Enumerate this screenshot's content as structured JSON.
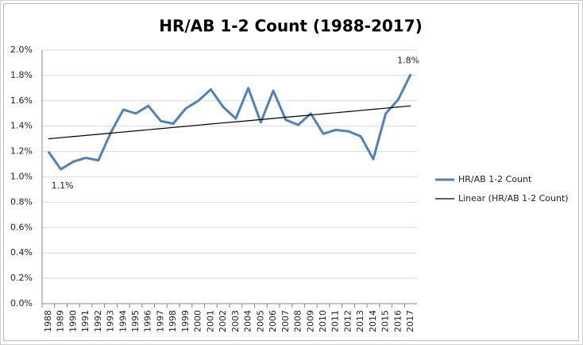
{
  "chart_data": {
    "type": "line",
    "title": "HR/AB 1-2 Count (1988-2017)",
    "categories": [
      "1988",
      "1989",
      "1990",
      "1991",
      "1992",
      "1993",
      "1994",
      "1995",
      "1996",
      "1997",
      "1998",
      "1999",
      "2000",
      "2001",
      "2002",
      "2003",
      "2004",
      "2005",
      "2006",
      "2007",
      "2008",
      "2009",
      "2010",
      "2011",
      "2012",
      "2013",
      "2014",
      "2015",
      "2016",
      "2017"
    ],
    "series": [
      {
        "name": "HR/AB 1-2 Count",
        "color": "#4f81bd",
        "values": [
          1.2,
          1.06,
          1.12,
          1.15,
          1.13,
          1.35,
          1.53,
          1.5,
          1.56,
          1.44,
          1.42,
          1.54,
          1.6,
          1.69,
          1.55,
          1.46,
          1.7,
          1.43,
          1.68,
          1.45,
          1.41,
          1.5,
          1.34,
          1.37,
          1.36,
          1.32,
          1.14,
          1.5,
          1.61,
          1.81
        ],
        "value_labels": [
          null,
          "1.1%",
          null,
          null,
          null,
          null,
          null,
          null,
          null,
          null,
          null,
          null,
          null,
          null,
          null,
          null,
          null,
          null,
          null,
          null,
          null,
          null,
          null,
          null,
          null,
          null,
          null,
          null,
          null,
          "1.8%"
        ]
      },
      {
        "name": "Linear (HR/AB 1-2 Count)",
        "color": "#000000",
        "values": [
          1.3,
          1.309,
          1.318,
          1.327,
          1.336,
          1.345,
          1.354,
          1.363,
          1.372,
          1.381,
          1.39,
          1.399,
          1.408,
          1.417,
          1.426,
          1.434,
          1.443,
          1.452,
          1.461,
          1.47,
          1.479,
          1.488,
          1.497,
          1.506,
          1.515,
          1.524,
          1.533,
          1.542,
          1.551,
          1.56
        ]
      }
    ],
    "ylim": [
      0,
      2.0
    ],
    "yticks": [
      {
        "value": 0,
        "label": "0.0%"
      },
      {
        "value": 0.2,
        "label": "0.2%"
      },
      {
        "value": 0.4,
        "label": "0.4%"
      },
      {
        "value": 0.6,
        "label": "0.6%"
      },
      {
        "value": 0.8,
        "label": "0.8%"
      },
      {
        "value": 1.0,
        "label": "1.0%"
      },
      {
        "value": 1.2,
        "label": "1.2%"
      },
      {
        "value": 1.4,
        "label": "1.4%"
      },
      {
        "value": 1.6,
        "label": "1.6%"
      },
      {
        "value": 1.8,
        "label": "1.8%"
      },
      {
        "value": 2.0,
        "label": "2.0%"
      }
    ],
    "grid": true,
    "legend": "right"
  }
}
